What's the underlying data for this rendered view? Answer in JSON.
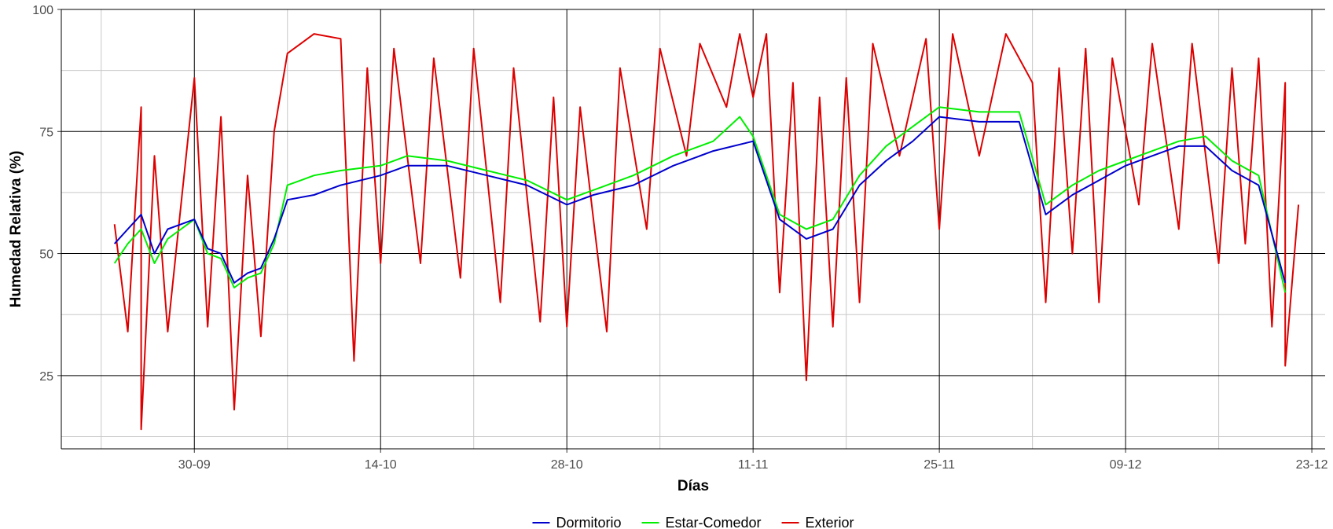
{
  "chart_data": {
    "type": "line",
    "title": "",
    "xlabel": "Días",
    "ylabel": "Humedad Relativa (%)",
    "xlim": [
      "2023-09-20",
      "2023-12-24"
    ],
    "ylim": [
      10,
      100
    ],
    "x_ticks": [
      {
        "date": "2023-09-30",
        "label": "30-09"
      },
      {
        "date": "2023-10-14",
        "label": "14-10"
      },
      {
        "date": "2023-10-28",
        "label": "28-10"
      },
      {
        "date": "2023-11-11",
        "label": "11-11"
      },
      {
        "date": "2023-11-25",
        "label": "25-11"
      },
      {
        "date": "2023-12-09",
        "label": "09-12"
      },
      {
        "date": "2023-12-23",
        "label": "23-12"
      }
    ],
    "y_ticks": [
      25,
      50,
      75,
      100
    ],
    "grid": true,
    "legend": {
      "position": "bottom"
    },
    "series": [
      {
        "name": "Dormitorio",
        "color": "#0000cc",
        "points": [
          [
            "2023-09-24",
            52
          ],
          [
            "2023-09-25",
            55
          ],
          [
            "2023-09-26",
            58
          ],
          [
            "2023-09-27",
            50
          ],
          [
            "2023-09-28",
            55
          ],
          [
            "2023-09-29",
            56
          ],
          [
            "2023-09-30",
            57
          ],
          [
            "2023-10-01",
            51
          ],
          [
            "2023-10-02",
            50
          ],
          [
            "2023-10-03",
            44
          ],
          [
            "2023-10-04",
            46
          ],
          [
            "2023-10-05",
            47
          ],
          [
            "2023-10-06",
            53
          ],
          [
            "2023-10-07",
            61
          ],
          [
            "2023-10-09",
            62
          ],
          [
            "2023-10-11",
            64
          ],
          [
            "2023-10-14",
            66
          ],
          [
            "2023-10-16",
            68
          ],
          [
            "2023-10-19",
            68
          ],
          [
            "2023-10-22",
            66
          ],
          [
            "2023-10-25",
            64
          ],
          [
            "2023-10-28",
            60
          ],
          [
            "2023-10-30",
            62
          ],
          [
            "2023-11-02",
            64
          ],
          [
            "2023-11-05",
            68
          ],
          [
            "2023-11-08",
            71
          ],
          [
            "2023-11-11",
            73
          ],
          [
            "2023-11-13",
            57
          ],
          [
            "2023-11-15",
            53
          ],
          [
            "2023-11-17",
            55
          ],
          [
            "2023-11-19",
            64
          ],
          [
            "2023-11-21",
            69
          ],
          [
            "2023-11-23",
            73
          ],
          [
            "2023-11-25",
            78
          ],
          [
            "2023-11-28",
            77
          ],
          [
            "2023-12-01",
            77
          ],
          [
            "2023-12-03",
            58
          ],
          [
            "2023-12-05",
            62
          ],
          [
            "2023-12-07",
            65
          ],
          [
            "2023-12-09",
            68
          ],
          [
            "2023-12-11",
            70
          ],
          [
            "2023-12-13",
            72
          ],
          [
            "2023-12-15",
            72
          ],
          [
            "2023-12-17",
            67
          ],
          [
            "2023-12-19",
            64
          ],
          [
            "2023-12-21",
            44
          ]
        ]
      },
      {
        "name": "Estar-Comedor",
        "color": "#00ee00",
        "points": [
          [
            "2023-09-24",
            48
          ],
          [
            "2023-09-25",
            52
          ],
          [
            "2023-09-26",
            55
          ],
          [
            "2023-09-27",
            48
          ],
          [
            "2023-09-28",
            53
          ],
          [
            "2023-09-29",
            55
          ],
          [
            "2023-09-30",
            57
          ],
          [
            "2023-10-01",
            50
          ],
          [
            "2023-10-02",
            49
          ],
          [
            "2023-10-03",
            43
          ],
          [
            "2023-10-04",
            45
          ],
          [
            "2023-10-05",
            46
          ],
          [
            "2023-10-06",
            52
          ],
          [
            "2023-10-07",
            64
          ],
          [
            "2023-10-09",
            66
          ],
          [
            "2023-10-11",
            67
          ],
          [
            "2023-10-14",
            68
          ],
          [
            "2023-10-16",
            70
          ],
          [
            "2023-10-19",
            69
          ],
          [
            "2023-10-22",
            67
          ],
          [
            "2023-10-25",
            65
          ],
          [
            "2023-10-28",
            61
          ],
          [
            "2023-10-30",
            63
          ],
          [
            "2023-11-02",
            66
          ],
          [
            "2023-11-05",
            70
          ],
          [
            "2023-11-08",
            73
          ],
          [
            "2023-11-10",
            78
          ],
          [
            "2023-11-11",
            74
          ],
          [
            "2023-11-13",
            58
          ],
          [
            "2023-11-15",
            55
          ],
          [
            "2023-11-17",
            57
          ],
          [
            "2023-11-19",
            66
          ],
          [
            "2023-11-21",
            72
          ],
          [
            "2023-11-23",
            76
          ],
          [
            "2023-11-25",
            80
          ],
          [
            "2023-11-28",
            79
          ],
          [
            "2023-12-01",
            79
          ],
          [
            "2023-12-03",
            60
          ],
          [
            "2023-12-05",
            64
          ],
          [
            "2023-12-07",
            67
          ],
          [
            "2023-12-09",
            69
          ],
          [
            "2023-12-11",
            71
          ],
          [
            "2023-12-13",
            73
          ],
          [
            "2023-12-15",
            74
          ],
          [
            "2023-12-17",
            69
          ],
          [
            "2023-12-19",
            66
          ],
          [
            "2023-12-21",
            42
          ]
        ]
      },
      {
        "name": "Exterior",
        "color": "#dd0000",
        "points": [
          [
            "2023-09-24",
            56
          ],
          [
            "2023-09-25",
            34
          ],
          [
            "2023-09-26",
            80
          ],
          [
            "2023-09-26",
            14
          ],
          [
            "2023-09-27",
            70
          ],
          [
            "2023-09-28",
            34
          ],
          [
            "2023-09-29",
            60
          ],
          [
            "2023-09-30",
            86
          ],
          [
            "2023-10-01",
            35
          ],
          [
            "2023-10-02",
            78
          ],
          [
            "2023-10-03",
            18
          ],
          [
            "2023-10-04",
            66
          ],
          [
            "2023-10-05",
            33
          ],
          [
            "2023-10-06",
            75
          ],
          [
            "2023-10-07",
            91
          ],
          [
            "2023-10-09",
            95
          ],
          [
            "2023-10-11",
            94
          ],
          [
            "2023-10-12",
            28
          ],
          [
            "2023-10-13",
            88
          ],
          [
            "2023-10-14",
            48
          ],
          [
            "2023-10-15",
            92
          ],
          [
            "2023-10-17",
            48
          ],
          [
            "2023-10-18",
            90
          ],
          [
            "2023-10-20",
            45
          ],
          [
            "2023-10-21",
            92
          ],
          [
            "2023-10-23",
            40
          ],
          [
            "2023-10-24",
            88
          ],
          [
            "2023-10-26",
            36
          ],
          [
            "2023-10-27",
            82
          ],
          [
            "2023-10-28",
            35
          ],
          [
            "2023-10-29",
            80
          ],
          [
            "2023-10-31",
            34
          ],
          [
            "2023-11-01",
            88
          ],
          [
            "2023-11-03",
            55
          ],
          [
            "2023-11-04",
            92
          ],
          [
            "2023-11-06",
            70
          ],
          [
            "2023-11-07",
            93
          ],
          [
            "2023-11-09",
            80
          ],
          [
            "2023-11-10",
            95
          ],
          [
            "2023-11-11",
            82
          ],
          [
            "2023-11-12",
            95
          ],
          [
            "2023-11-13",
            42
          ],
          [
            "2023-11-14",
            85
          ],
          [
            "2023-11-15",
            24
          ],
          [
            "2023-11-16",
            82
          ],
          [
            "2023-11-17",
            35
          ],
          [
            "2023-11-18",
            86
          ],
          [
            "2023-11-19",
            40
          ],
          [
            "2023-11-20",
            93
          ],
          [
            "2023-11-22",
            70
          ],
          [
            "2023-11-24",
            94
          ],
          [
            "2023-11-25",
            55
          ],
          [
            "2023-11-26",
            95
          ],
          [
            "2023-11-28",
            70
          ],
          [
            "2023-11-30",
            95
          ],
          [
            "2023-12-02",
            85
          ],
          [
            "2023-12-03",
            40
          ],
          [
            "2023-12-04",
            88
          ],
          [
            "2023-12-05",
            50
          ],
          [
            "2023-12-06",
            92
          ],
          [
            "2023-12-07",
            40
          ],
          [
            "2023-12-08",
            90
          ],
          [
            "2023-12-10",
            60
          ],
          [
            "2023-12-11",
            93
          ],
          [
            "2023-12-13",
            55
          ],
          [
            "2023-12-14",
            93
          ],
          [
            "2023-12-16",
            48
          ],
          [
            "2023-12-17",
            88
          ],
          [
            "2023-12-18",
            52
          ],
          [
            "2023-12-19",
            90
          ],
          [
            "2023-12-20",
            35
          ],
          [
            "2023-12-21",
            85
          ],
          [
            "2023-12-21",
            27
          ],
          [
            "2023-12-22",
            60
          ]
        ]
      }
    ]
  }
}
